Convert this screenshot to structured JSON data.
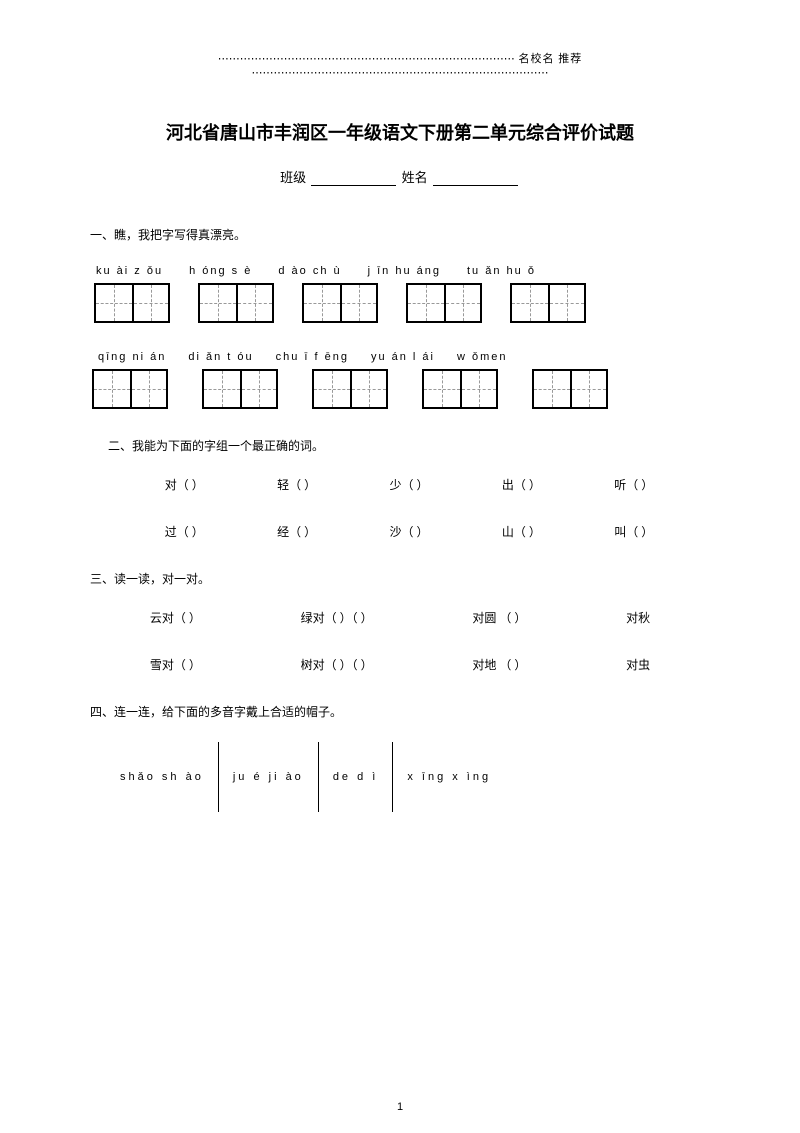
{
  "header": {
    "left_dots": "⋯⋯⋯⋯⋯⋯⋯⋯⋯⋯⋯⋯⋯⋯⋯⋯⋯⋯⋯⋯⋯⋯⋯⋯⋯⋯⋯",
    "label": "名校名 推荐",
    "right_dots": "⋯⋯⋯⋯⋯⋯⋯⋯⋯⋯⋯⋯⋯⋯⋯⋯⋯⋯⋯⋯⋯⋯⋯⋯⋯⋯⋯"
  },
  "title": "河北省唐山市丰润区一年级语文下册第二单元综合评价试题",
  "subtitle": {
    "class_label": "班级",
    "name_label": "姓名"
  },
  "q1": {
    "title": "一、瞧，我把字写得真漂亮。",
    "row1": [
      "ku ài z ǒu",
      "h   óng s è",
      "d   ào ch  ù",
      "j   īn hu áng",
      "tu   ǎn hu ǒ"
    ],
    "row2": [
      "qīng ni án",
      "di   ǎn t óu",
      "chu   ī f ēng",
      "yu   án l  ái",
      "w      ǒmen"
    ]
  },
  "q2": {
    "title": "二、我能为下面的字组一个最正确的词。",
    "row1": [
      "对（   ）",
      "轻（   ）",
      "少（   ）",
      "出（   ）",
      "听（   ）"
    ],
    "row2": [
      "过（   ）",
      "经（   ）",
      "沙（   ）",
      "山（   ）",
      "叫（   ）"
    ]
  },
  "q3": {
    "title": "三、读一读，对一对。",
    "row1": [
      "云对（   ）",
      "绿对（   ）（   ）",
      "对圆   （   ）",
      "对秋"
    ],
    "row2": [
      "雪对（   ）",
      "树对（   ）（   ）",
      "对地   （   ）",
      "对虫"
    ]
  },
  "q4": {
    "title": "四、连一连，给下面的多音字戴上合适的帽子。",
    "groups": [
      "shǎo sh  ào",
      "ju   é ji   ào",
      "de d        ì",
      "x      īng x ìng"
    ]
  },
  "page": "1"
}
